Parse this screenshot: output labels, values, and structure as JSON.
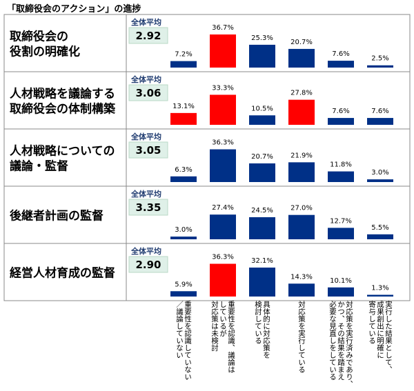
{
  "title": "「取締役会のアクション」の進捗",
  "avg_label": "全体平均",
  "colors": {
    "normal": "#003087",
    "highlight": "#ff0000",
    "avg_bg": "#dff0e8",
    "avg_text": "#1f3b70",
    "border": "#888888"
  },
  "chart_data": {
    "type": "bar",
    "title": "「取締役会のアクション」の進捗",
    "categories": [
      "重要性を認識していない\n／議論していない",
      "重要性を認識、議論は\nしているが\n対応策は未検討",
      "具体的に対応策を\n検討している",
      "対応策を実行している",
      "対応策を実行済みであり、\nかつ、その結果を踏まえ\n必要な見直しをしている",
      "実行した結果として、\n成果創出に明確に\n寄与している"
    ],
    "series": [
      {
        "name": "取締役会の\n役割の明確化",
        "average": "2.92",
        "values": [
          7.2,
          36.7,
          25.3,
          20.7,
          7.6,
          2.5
        ],
        "highlight": [
          false,
          true,
          false,
          false,
          false,
          false
        ]
      },
      {
        "name": "人材戦略を議論する\n取締役会の体制構築",
        "average": "3.06",
        "values": [
          13.1,
          33.3,
          10.5,
          27.8,
          7.6,
          7.6
        ],
        "highlight": [
          true,
          true,
          false,
          true,
          false,
          false
        ]
      },
      {
        "name": "人材戦略についての\n議論・監督",
        "average": "3.05",
        "values": [
          6.3,
          36.3,
          20.7,
          21.9,
          11.8,
          3.0
        ],
        "highlight": [
          false,
          false,
          false,
          false,
          false,
          false
        ]
      },
      {
        "name": "後継者計画の監督",
        "average": "3.35",
        "values": [
          3.0,
          27.4,
          24.5,
          27.0,
          12.7,
          5.5
        ],
        "highlight": [
          false,
          false,
          false,
          false,
          false,
          false
        ]
      },
      {
        "name": "経営人材育成の監督",
        "average": "2.90",
        "values": [
          5.9,
          36.3,
          32.1,
          14.3,
          10.1,
          1.3
        ],
        "highlight": [
          false,
          true,
          false,
          false,
          false,
          false
        ]
      }
    ],
    "value_suffix": "%",
    "ylim": [
      0,
      36.7
    ],
    "legend": "none",
    "grid": false
  }
}
